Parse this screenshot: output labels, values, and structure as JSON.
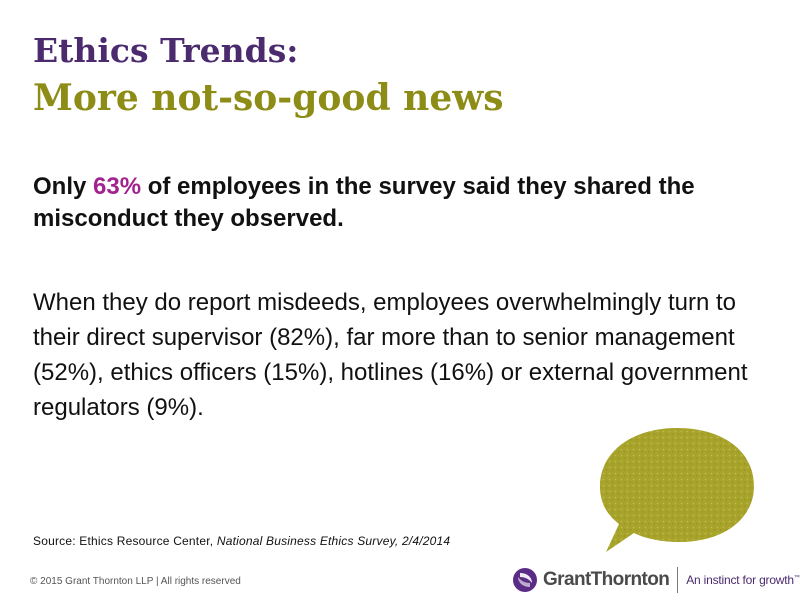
{
  "slide": {
    "title_line1": "Ethics Trends:",
    "title_line2": "More not-so-good news",
    "lead_prefix": "Only ",
    "lead_highlight": "63%",
    "lead_suffix": " of employees in the survey said they shared the misconduct they observed.",
    "body": "When they do report misdeeds, employees overwhelmingly turn to their direct supervisor (82%), far more than to senior management (52%), ethics officers (15%), hotlines (16%) or external government regulators (9%).",
    "source_prefix": "Source: Ethics Resource Center, ",
    "source_italic": "National Business Ethics Survey, 2/4/2014"
  },
  "footer": {
    "copyright": "© 2015 Grant Thornton LLP  |  All rights reserved"
  },
  "logo": {
    "name": "GrantThornton",
    "tagline": "An instinct for growth",
    "trademark": "™"
  },
  "colors": {
    "title_purple": "#4b2a6e",
    "title_olive": "#8c8c16",
    "highlight_magenta": "#a3238e",
    "bubble_olive": "#a8a32a"
  },
  "icons": {
    "speech_bubble": "speech-bubble-icon",
    "logo_mark": "grant-thornton-logo-icon"
  }
}
